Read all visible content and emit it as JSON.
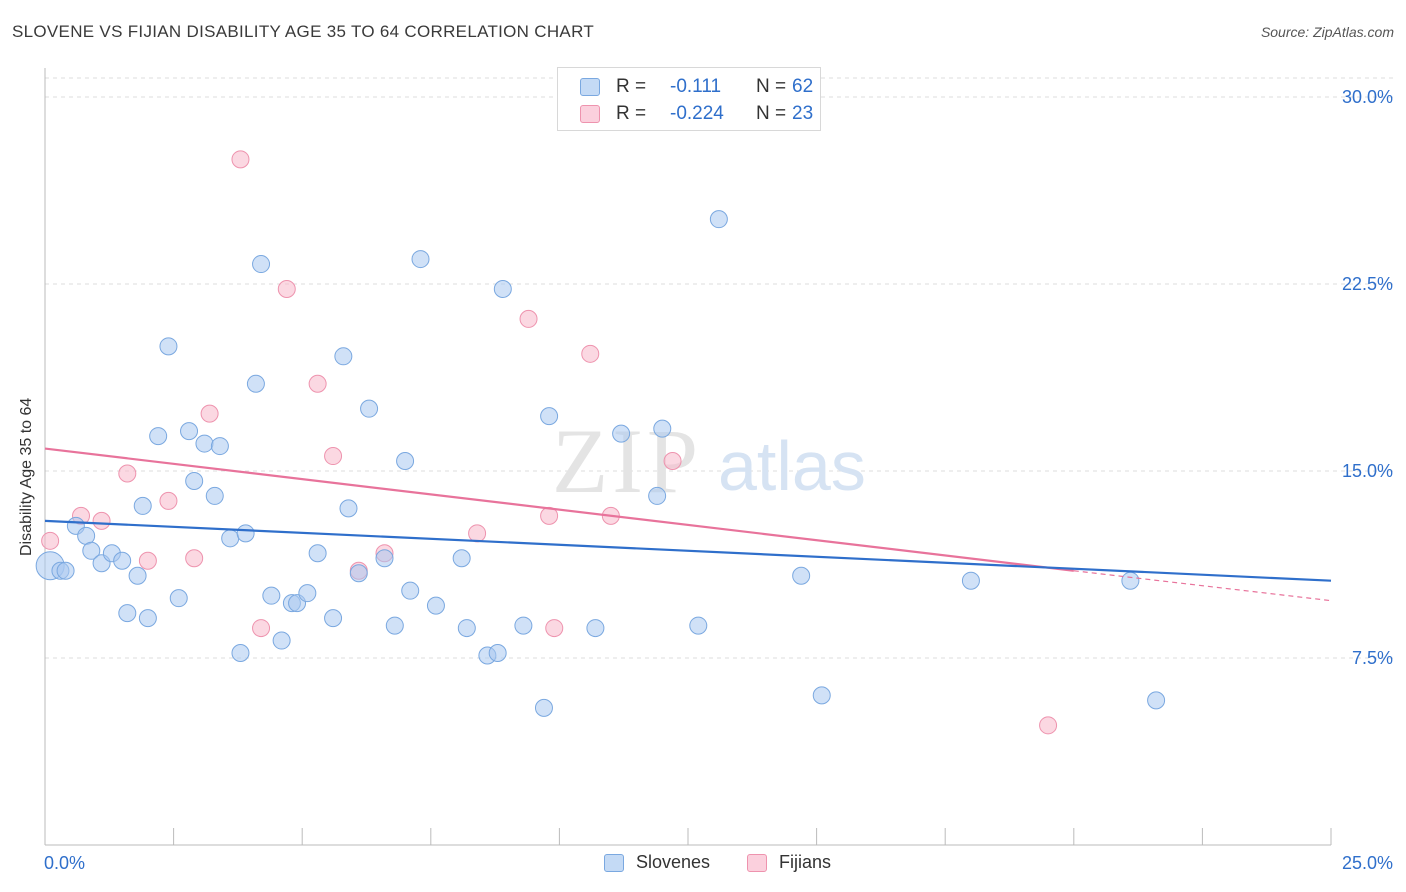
{
  "header": {
    "title": "SLOVENE VS FIJIAN DISABILITY AGE 35 TO 64 CORRELATION CHART",
    "source": "Source: ZipAtlas.com"
  },
  "watermark": {
    "zip": "ZIP",
    "atlas": "atlas"
  },
  "legend": {
    "rows": [
      {
        "r_label": "R =",
        "r_value": "-0.111",
        "n_label": "N =",
        "n_value": "62",
        "color": "#a9c8f0"
      },
      {
        "r_label": "R =",
        "r_value": "-0.224",
        "n_label": "N =",
        "n_value": "23",
        "color": "#f7b8cb"
      }
    ]
  },
  "bottom_legend": [
    {
      "label": "Slovenes",
      "color": "#a9c8f0"
    },
    {
      "label": "Fijians",
      "color": "#f7b8cb"
    }
  ],
  "colors": {
    "slovene_fill": "#a9c8f0",
    "slovene_stroke": "#7aa8e0",
    "slovene_line": "#2f6fcb",
    "fijian_fill": "#f7b8cb",
    "fijian_stroke": "#ee93ae",
    "fijian_line": "#e8739b",
    "tick_label": "#2f6fcb",
    "grid": "#dddddd"
  },
  "chart_data": {
    "type": "scatter",
    "title": "SLOVENE VS FIJIAN DISABILITY AGE 35 TO 64 CORRELATION CHART",
    "xlabel": "",
    "ylabel": "Disability Age 35 to 64",
    "xlim": [
      0,
      25
    ],
    "ylim": [
      0,
      32
    ],
    "x_tick_labels": [
      "0.0%",
      "25.0%"
    ],
    "y_ticks": [
      7.5,
      15.0,
      22.5,
      30.0
    ],
    "y_tick_labels": [
      "7.5%",
      "15.0%",
      "22.5%",
      "30.0%"
    ],
    "grid": true,
    "legend_position": "top-center",
    "series": [
      {
        "name": "Slovenes",
        "r": -0.111,
        "n": 62,
        "trend": {
          "x": [
            0,
            25
          ],
          "y": [
            13.0,
            10.6
          ]
        },
        "points": [
          [
            0.1,
            11.2
          ],
          [
            0.3,
            11.0
          ],
          [
            0.4,
            11.0
          ],
          [
            0.6,
            12.8
          ],
          [
            0.8,
            12.4
          ],
          [
            0.9,
            11.8
          ],
          [
            1.1,
            11.3
          ],
          [
            1.3,
            11.7
          ],
          [
            1.5,
            11.4
          ],
          [
            1.6,
            9.3
          ],
          [
            1.8,
            10.8
          ],
          [
            1.9,
            13.6
          ],
          [
            2.0,
            9.1
          ],
          [
            2.2,
            16.4
          ],
          [
            2.4,
            20.0
          ],
          [
            2.6,
            9.9
          ],
          [
            2.8,
            16.6
          ],
          [
            2.9,
            14.6
          ],
          [
            3.1,
            16.1
          ],
          [
            3.3,
            14.0
          ],
          [
            3.4,
            16.0
          ],
          [
            3.6,
            12.3
          ],
          [
            3.8,
            7.7
          ],
          [
            3.9,
            12.5
          ],
          [
            4.1,
            18.5
          ],
          [
            4.2,
            23.3
          ],
          [
            4.4,
            10.0
          ],
          [
            4.6,
            8.2
          ],
          [
            4.8,
            9.7
          ],
          [
            4.9,
            9.7
          ],
          [
            5.1,
            10.1
          ],
          [
            5.3,
            11.7
          ],
          [
            5.6,
            9.1
          ],
          [
            5.8,
            19.6
          ],
          [
            5.9,
            13.5
          ],
          [
            6.1,
            10.9
          ],
          [
            6.3,
            17.5
          ],
          [
            6.6,
            11.5
          ],
          [
            6.8,
            8.8
          ],
          [
            7.0,
            15.4
          ],
          [
            7.1,
            10.2
          ],
          [
            7.3,
            23.5
          ],
          [
            7.6,
            9.6
          ],
          [
            8.1,
            11.5
          ],
          [
            8.2,
            8.7
          ],
          [
            8.6,
            7.6
          ],
          [
            8.8,
            7.7
          ],
          [
            8.9,
            22.3
          ],
          [
            9.3,
            8.8
          ],
          [
            9.7,
            5.5
          ],
          [
            9.8,
            17.2
          ],
          [
            10.7,
            8.7
          ],
          [
            11.2,
            16.5
          ],
          [
            11.9,
            14.0
          ],
          [
            12.0,
            16.7
          ],
          [
            12.7,
            8.8
          ],
          [
            13.1,
            25.1
          ],
          [
            14.7,
            10.8
          ],
          [
            15.1,
            6.0
          ],
          [
            18.0,
            10.6
          ],
          [
            21.1,
            10.6
          ],
          [
            21.6,
            5.8
          ]
        ]
      },
      {
        "name": "Fijians",
        "r": -0.224,
        "n": 23,
        "trend": {
          "x": [
            0,
            20
          ],
          "y": [
            15.9,
            11.0
          ]
        },
        "trend_extension": {
          "x": [
            20,
            25
          ],
          "y": [
            11.0,
            9.8
          ]
        },
        "points": [
          [
            0.1,
            12.2
          ],
          [
            0.7,
            13.2
          ],
          [
            1.1,
            13.0
          ],
          [
            1.6,
            14.9
          ],
          [
            2.0,
            11.4
          ],
          [
            2.4,
            13.8
          ],
          [
            2.9,
            11.5
          ],
          [
            3.2,
            17.3
          ],
          [
            3.8,
            27.5
          ],
          [
            4.2,
            8.7
          ],
          [
            4.7,
            22.3
          ],
          [
            5.3,
            18.5
          ],
          [
            5.6,
            15.6
          ],
          [
            6.1,
            11.0
          ],
          [
            6.6,
            11.7
          ],
          [
            8.4,
            12.5
          ],
          [
            9.4,
            21.1
          ],
          [
            9.8,
            13.2
          ],
          [
            9.9,
            8.7
          ],
          [
            10.6,
            19.7
          ],
          [
            11.0,
            13.2
          ],
          [
            12.2,
            15.4
          ],
          [
            19.5,
            4.8
          ]
        ]
      }
    ]
  }
}
